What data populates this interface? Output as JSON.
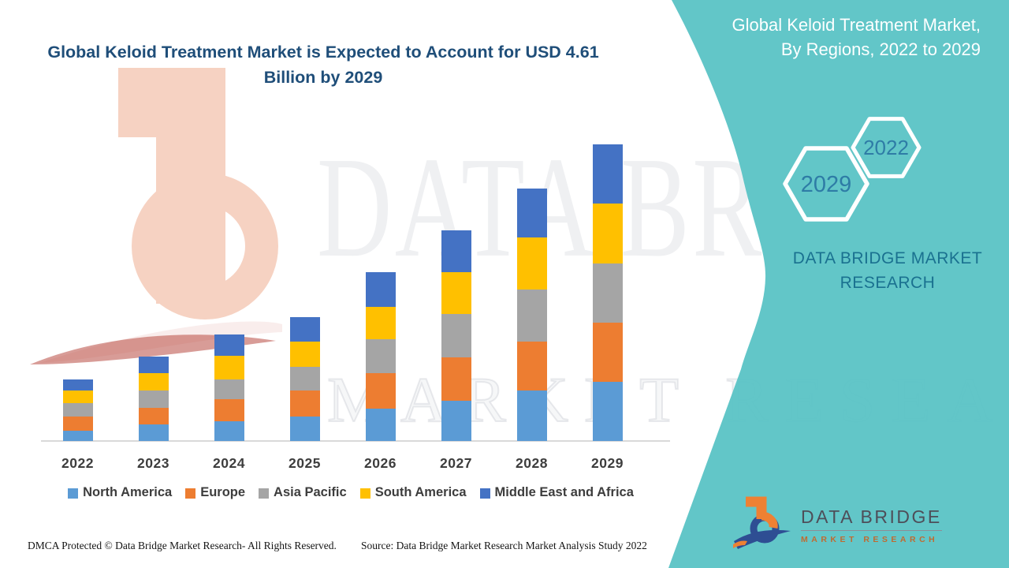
{
  "style": {
    "panel_teal": "#5BC3C4",
    "title_color": "#1F4E79",
    "hex_label_color": "#2E7CA6",
    "brand_text_color": "#1A7190",
    "axis_line_color": "#D9D9D9"
  },
  "chart_data": {
    "type": "bar",
    "stacked": true,
    "title": "Global Keloid Treatment Market is Expected to Account for USD 4.61 Billion by 2029",
    "unit": "USD Billion",
    "categories": [
      "2022",
      "2023",
      "2024",
      "2025",
      "2026",
      "2027",
      "2028",
      "2029"
    ],
    "series": [
      {
        "name": "North America",
        "color": "#5B9BD5",
        "values": [
          0.16,
          0.26,
          0.31,
          0.38,
          0.5,
          0.63,
          0.78,
          0.92
        ]
      },
      {
        "name": "Europe",
        "color": "#ED7D31",
        "values": [
          0.22,
          0.25,
          0.34,
          0.4,
          0.55,
          0.67,
          0.77,
          0.92
        ]
      },
      {
        "name": "Asia Pacific",
        "color": "#A5A5A5",
        "values": [
          0.21,
          0.27,
          0.31,
          0.37,
          0.53,
          0.67,
          0.8,
          0.92
        ]
      },
      {
        "name": "South America",
        "color": "#FFC000",
        "values": [
          0.2,
          0.28,
          0.36,
          0.4,
          0.51,
          0.66,
          0.81,
          0.93
        ]
      },
      {
        "name": "Middle East and Africa",
        "color": "#4472C4",
        "values": [
          0.17,
          0.25,
          0.33,
          0.38,
          0.53,
          0.64,
          0.76,
          0.92
        ]
      }
    ],
    "totals_estimated": [
      0.96,
      1.31,
      1.65,
      1.93,
      2.62,
      3.27,
      3.92,
      4.61
    ],
    "ylim": [
      0,
      4.8
    ],
    "grid": false,
    "legend_position": "bottom"
  },
  "side_panel": {
    "heading": "Global Keloid Treatment Market, By Regions, 2022 to 2029",
    "hexagons": [
      {
        "label": "2029"
      },
      {
        "label": "2022"
      }
    ],
    "brand_text": "DATA BRIDGE MARKET RESEARCH"
  },
  "watermark": {
    "line1": "DATA BRIDGE",
    "line2": "MARKET RESEARCH"
  },
  "logo": {
    "icon": "data-bridge-b-mark",
    "name": "DATA BRIDGE",
    "tagline": "MARKET RESEARCH"
  },
  "footer": {
    "left": "DMCA Protected © Data Bridge Market Research- All Rights Reserved.",
    "right": "Source: Data Bridge Market Research Market Analysis Study 2022"
  }
}
